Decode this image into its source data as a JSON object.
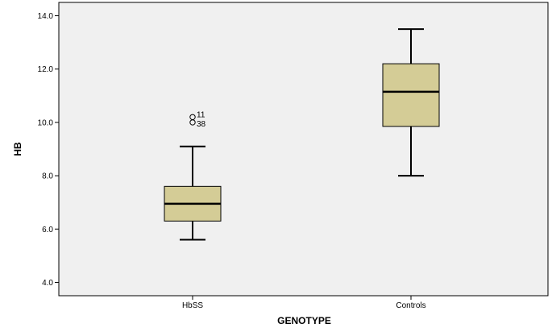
{
  "chart_data": {
    "type": "boxplot",
    "xlabel": "GENOTYPE",
    "ylabel": "HB",
    "ylim": [
      3.5,
      14.5
    ],
    "yticks": [
      4.0,
      6.0,
      8.0,
      10.0,
      12.0,
      14.0
    ],
    "ytick_labels": [
      "4.0",
      "6.0",
      "8.0",
      "10.0",
      "12.0",
      "14.0"
    ],
    "categories": [
      "HbSS",
      "Controls"
    ],
    "boxes": [
      {
        "category": "HbSS",
        "whisker_low": 5.6,
        "q1": 6.3,
        "median": 6.95,
        "q3": 7.6,
        "whisker_high": 9.1,
        "outliers": [
          {
            "value": 10.2,
            "label": "11"
          },
          {
            "value": 10.0,
            "label": "38"
          }
        ]
      },
      {
        "category": "Controls",
        "whisker_low": 8.0,
        "q1": 9.85,
        "median": 11.15,
        "q3": 12.2,
        "whisker_high": 13.5,
        "outliers": []
      }
    ],
    "grid": false,
    "colors": {
      "plot_background": "#f0f0f0",
      "box_fill": "#d4cc96",
      "line": "#000000"
    }
  }
}
